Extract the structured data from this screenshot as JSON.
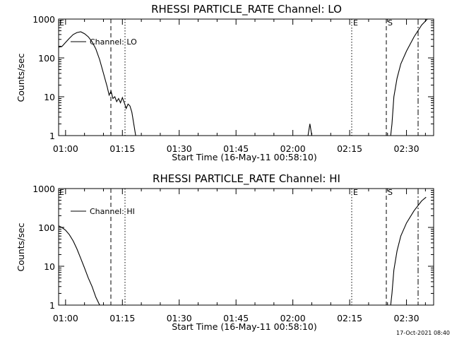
{
  "timestamp": "17-Oct-2021 08:40",
  "chart_data": [
    {
      "type": "line",
      "title": "RHESSI PARTICLE_RATE Channel: LO",
      "xlabel": "Start Time (16-May-11 00:58:10)",
      "ylabel": "Counts/sec",
      "y_scale": "log",
      "ylim": [
        1,
        1000
      ],
      "xlim_minutes_after_start": [
        0,
        99
      ],
      "x_tick_labels": [
        "01:00",
        "01:15",
        "01:30",
        "01:45",
        "02:00",
        "02:15",
        "02:30"
      ],
      "y_tick_labels": [
        "1",
        "10",
        "100",
        "1000"
      ],
      "legend": "Channel: LO",
      "markers": [
        "E",
        "E",
        "S"
      ],
      "series": [
        {
          "name": "Channel: LO",
          "segments": [
            [
              [
                "00:58:10",
                190
              ],
              [
                "00:59:00",
                195
              ],
              [
                "01:00:00",
                250
              ],
              [
                "01:01:00",
                320
              ],
              [
                "01:02:00",
                400
              ],
              [
                "01:03:00",
                450
              ],
              [
                "01:04:00",
                470
              ],
              [
                "01:05:00",
                420
              ],
              [
                "01:06:00",
                350
              ],
              [
                "01:07:00",
                260
              ],
              [
                "01:08:00",
                170
              ],
              [
                "01:09:00",
                90
              ],
              [
                "01:10:00",
                40
              ],
              [
                "01:11:00",
                18
              ],
              [
                "01:11:30",
                11
              ],
              [
                "01:12:00",
                14
              ],
              [
                "01:12:30",
                9
              ],
              [
                "01:13:00",
                10
              ],
              [
                "01:13:30",
                7.5
              ],
              [
                "01:14:00",
                9
              ],
              [
                "01:14:30",
                7
              ],
              [
                "01:15:00",
                9.5
              ],
              [
                "01:15:30",
                7
              ],
              [
                "01:16:00",
                5
              ],
              [
                "01:16:30",
                6.5
              ],
              [
                "01:17:00",
                5.8
              ],
              [
                "01:17:30",
                4
              ],
              [
                "01:18:00",
                2
              ],
              [
                "01:18:30",
                1
              ]
            ],
            [
              [
                "02:04:00",
                1
              ],
              [
                "02:04:30",
                2
              ],
              [
                "02:05:00",
                1
              ]
            ],
            [
              [
                "02:25:50",
                1
              ],
              [
                "02:26:10",
                2
              ],
              [
                "02:26:40",
                10
              ],
              [
                "02:27:30",
                30
              ],
              [
                "02:28:30",
                70
              ],
              [
                "02:30:00",
                150
              ],
              [
                "02:32:00",
                350
              ],
              [
                "02:34:00",
                700
              ],
              [
                "02:35:30",
                1000
              ]
            ]
          ]
        }
      ]
    },
    {
      "type": "line",
      "title": "RHESSI PARTICLE_RATE Channel: HI",
      "xlabel": "Start Time (16-May-11 00:58:10)",
      "ylabel": "Counts/sec",
      "y_scale": "log",
      "ylim": [
        1,
        1000
      ],
      "xlim_minutes_after_start": [
        0,
        99
      ],
      "x_tick_labels": [
        "01:00",
        "01:15",
        "01:30",
        "01:45",
        "02:00",
        "02:15",
        "02:30"
      ],
      "y_tick_labels": [
        "1",
        "10",
        "100",
        "1000"
      ],
      "legend": "Channel: HI",
      "markers": [
        "E",
        "E",
        "S"
      ],
      "series": [
        {
          "name": "Channel: HI",
          "segments": [
            [
              [
                "00:58:10",
                110
              ],
              [
                "00:59:00",
                100
              ],
              [
                "01:00:00",
                85
              ],
              [
                "01:01:00",
                65
              ],
              [
                "01:02:00",
                45
              ],
              [
                "01:03:00",
                28
              ],
              [
                "01:04:00",
                16
              ],
              [
                "01:05:00",
                9
              ],
              [
                "01:06:00",
                5
              ],
              [
                "01:07:00",
                3
              ],
              [
                "01:08:00",
                1.6
              ],
              [
                "01:09:00",
                1
              ]
            ],
            [
              [
                "02:25:50",
                1
              ],
              [
                "02:26:10",
                2
              ],
              [
                "02:26:40",
                8
              ],
              [
                "02:27:30",
                25
              ],
              [
                "02:28:30",
                60
              ],
              [
                "02:30:00",
                130
              ],
              [
                "02:32:00",
                270
              ],
              [
                "02:34:00",
                480
              ],
              [
                "02:35:10",
                600
              ]
            ]
          ]
        }
      ]
    }
  ]
}
